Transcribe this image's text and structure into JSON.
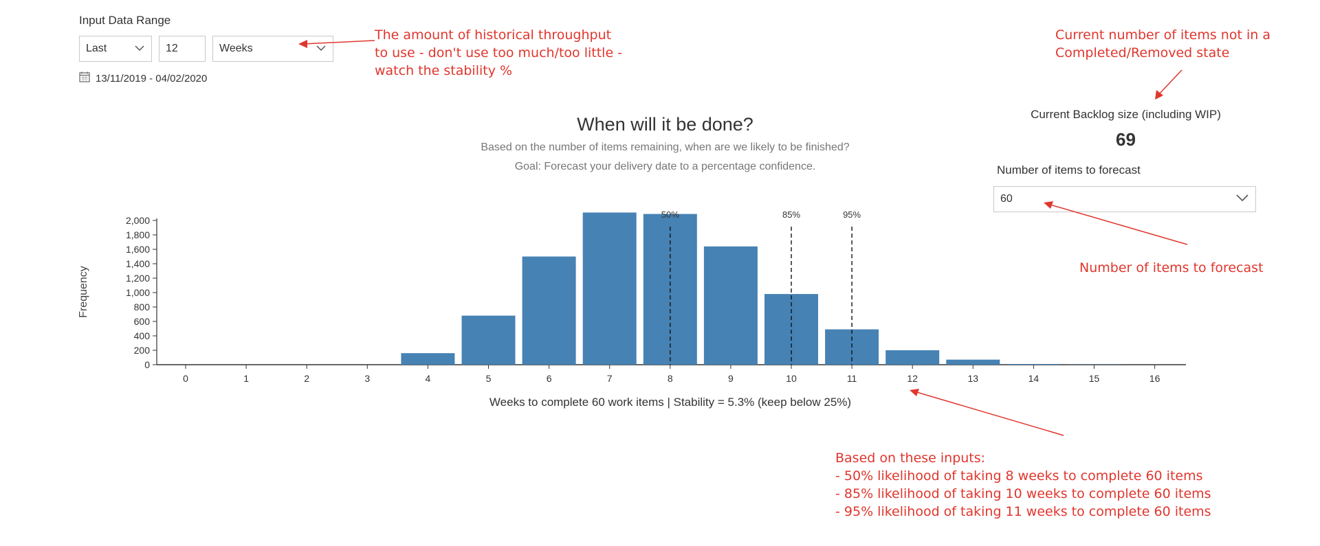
{
  "input_range": {
    "label": "Input Data Range",
    "mode_value": "Last",
    "count_value": "12",
    "unit_value": "Weeks",
    "date_range": "13/11/2019 - 04/02/2020"
  },
  "chart_header": {
    "title": "When will it be done?",
    "subtitle1": "Based on the number of items remaining, when are we likely to be finished?",
    "subtitle2": "Goal: Forecast your delivery date to a percentage confidence."
  },
  "backlog": {
    "label": "Current Backlog size (including WIP)",
    "value": "69"
  },
  "forecast": {
    "label": "Number of items to forecast",
    "value": "60"
  },
  "annotations": {
    "throughput": [
      "The amount of historical throughput",
      "to use - don't use too much/too little -",
      "watch the stability %"
    ],
    "backlog": [
      "Current number of items not in a",
      "Completed/Removed state"
    ],
    "forecast": "Number of items to forecast",
    "summary": [
      "Based on these inputs:",
      "- 50% likelihood of taking 8 weeks to complete 60 items",
      "- 85% likelihood of taking 10 weeks to complete 60 items",
      "- 95% likelihood of taking 11 weeks to complete 60 items"
    ]
  },
  "colors": {
    "bar": "#4682b4",
    "annotation": "#e0362d"
  },
  "icons": {
    "calendar": "calendar-icon",
    "chevron": "chevron-down-icon"
  },
  "chart_data": {
    "type": "bar",
    "categories": [
      "0",
      "1",
      "2",
      "3",
      "4",
      "5",
      "6",
      "7",
      "8",
      "9",
      "10",
      "11",
      "12",
      "13",
      "14",
      "15",
      "16"
    ],
    "values": [
      0,
      0,
      0,
      0,
      160,
      680,
      1500,
      2110,
      2090,
      1640,
      980,
      490,
      200,
      70,
      10,
      2,
      0
    ],
    "ylabel": "Frequency",
    "xlabel": "Weeks to complete 60 work items | Stability = 5.3% (keep below 25%)",
    "yticks": [
      0,
      200,
      400,
      600,
      800,
      1000,
      1200,
      1400,
      1600,
      1800,
      2000
    ],
    "ytick_labels": [
      "0",
      "200",
      "400",
      "600",
      "800",
      "1,000",
      "1,200",
      "1,400",
      "1,600",
      "1,800",
      "2,000"
    ],
    "ylim": [
      0,
      2100
    ],
    "percentiles": [
      {
        "label": "50%",
        "x": 8
      },
      {
        "label": "85%",
        "x": 10
      },
      {
        "label": "95%",
        "x": 11
      }
    ]
  }
}
